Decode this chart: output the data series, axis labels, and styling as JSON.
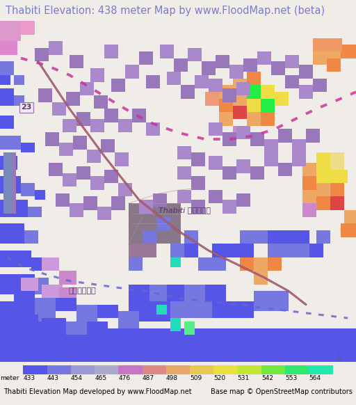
{
  "title": "Thabiti Elevation: 438 meter Map by www.FloodMap.net (beta)",
  "title_color": "#7B7BCC",
  "title_bg": "#f0ede8",
  "title_fontsize": 10.5,
  "colorbar_labels": [
    "433",
    "443",
    "454",
    "465",
    "476",
    "487",
    "498",
    "509",
    "520",
    "531",
    "542",
    "553",
    "564"
  ],
  "colorbar_label_prefix": "meter",
  "footer_left": "Thabiti Elevation Map developed by www.FloodMap.net",
  "footer_right": "Base map © OpenStreetMap contributors",
  "footer_fontsize": 7.0,
  "fig_width": 5.12,
  "fig_height": 5.82,
  "colorbar_colors": [
    "#5555e8",
    "#7777e0",
    "#9999d8",
    "#aaaacc",
    "#c875c8",
    "#e08888",
    "#e8a868",
    "#e8c855",
    "#e8e040",
    "#c0e835",
    "#70e840",
    "#30e870",
    "#20e8b0"
  ],
  "map_bg": "#cc88cc",
  "road_color": "#c07080",
  "road_dark": "#884455",
  "dotted_upper": "#cc44aa",
  "dotted_lower": "#7777bb",
  "blue_elev": "#5555e8",
  "blue_light": "#7777e0",
  "blue_cyan": "#55aaee",
  "green_bright": "#22ee44",
  "green_light": "#55ee88",
  "teal": "#22ddbb",
  "yellow": "#eedd44",
  "yellow_light": "#eedd88",
  "orange": "#ee8844",
  "orange_light": "#eea866",
  "red": "#dd4444",
  "pink_lo": "#cc88cc",
  "pink_mid": "#cc99dd",
  "purple_lo": "#aa88cc",
  "purple_dark": "#9977bb",
  "dark_gray": "#887788",
  "dark_brown": "#997799"
}
